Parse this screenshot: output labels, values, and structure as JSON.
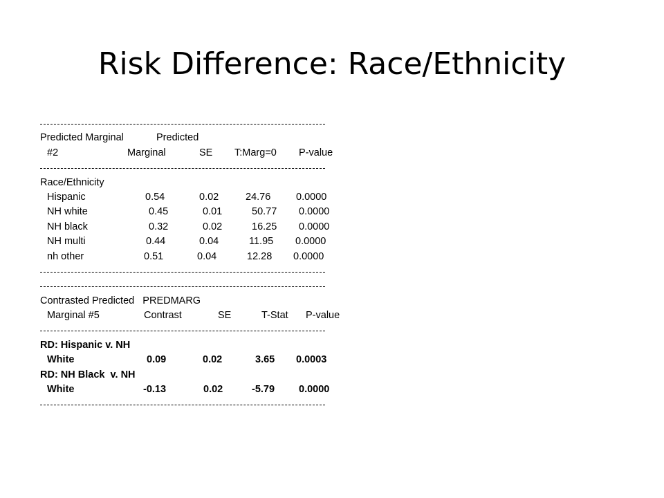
{
  "title": "Risk Difference: Race/Ethnicity",
  "table1": {
    "header_line1": {
      "left": "Predicted Marginal",
      "right": "Predicted"
    },
    "header_line2": {
      "c0": "#2",
      "c1": "Marginal",
      "c2": "SE",
      "c3": "T:Marg=0",
      "c4": "P-value"
    },
    "group_label": "Race/Ethnicity",
    "rows": [
      {
        "label": "Hispanic",
        "marginal": "0.54",
        "se": "0.02",
        "t": "24.76",
        "p": "0.0000"
      },
      {
        "label": "NH white",
        "marginal": "0.45",
        "se": "0.01",
        "t": "50.77",
        "p": "0.0000"
      },
      {
        "label": "NH black",
        "marginal": "0.32",
        "se": "0.02",
        "t": "16.25",
        "p": "0.0000"
      },
      {
        "label": "NH multi",
        "marginal": "0.44",
        "se": "0.04",
        "t": "11.95",
        "p": "0.0000"
      },
      {
        "label": "nh other",
        "marginal": "0.51",
        "se": "0.04",
        "t": "12.28",
        "p": "0.0000"
      }
    ]
  },
  "table2": {
    "header_line1": "Contrasted Predicted   PREDMARG",
    "header_line2": {
      "c0": "Marginal #5",
      "c1": "Contrast",
      "c2": "SE",
      "c3": "T-Stat",
      "c4": "P-value"
    },
    "contrasts": [
      {
        "label": "RD: Hispanic v. NH",
        "sublabel": "White",
        "contrast": "0.09",
        "se": "0.02",
        "t": "3.65",
        "p": "0.0003"
      },
      {
        "label": "RD: NH Black  v. NH",
        "sublabel": "White",
        "contrast": "-0.13",
        "se": "0.02",
        "t": "-5.79",
        "p": "0.0000"
      }
    ]
  }
}
